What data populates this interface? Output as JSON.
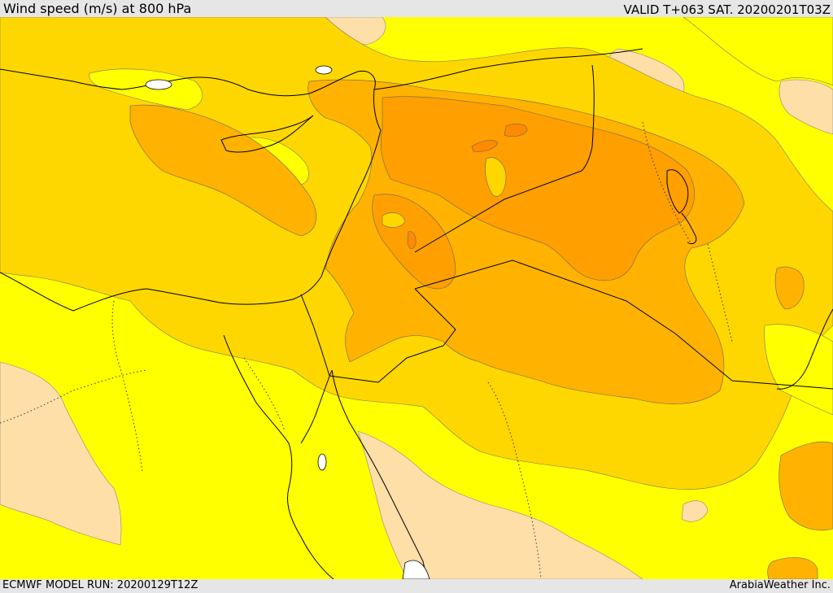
{
  "header": {
    "title": "Wind speed (m/s) at 800 hPa",
    "valid": "VALID T+063 SAT. 20200201T03Z"
  },
  "footer": {
    "model_run": "ECMWF MODEL RUN: 20200129T12Z",
    "credit": "ArabiaWeather Inc."
  },
  "palette": {
    "calm": "#ffdfa8",
    "low": "#ffff00",
    "low_mid": "#ffff66",
    "moderate": "#ffd700",
    "strong": "#ffb300",
    "stronger": "#ff9f00",
    "strongest": "#ff8a00",
    "coastline": "#000000",
    "border": "#000000"
  }
}
